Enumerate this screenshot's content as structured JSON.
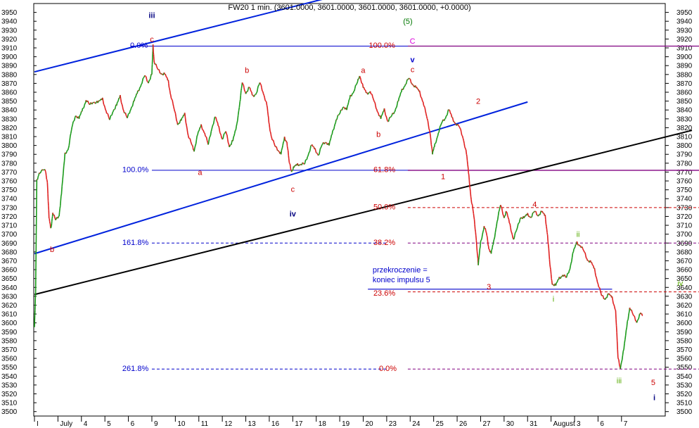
{
  "chart_data": {
    "type": "line",
    "title": "FW20 1 min. (3601.0000, 3601.0000, 3601.0000, 3601.0000, +0.0000)",
    "ylim": [
      3495,
      3960
    ],
    "y_ticks": [
      3500,
      3510,
      3520,
      3530,
      3540,
      3550,
      3560,
      3570,
      3580,
      3590,
      3600,
      3610,
      3620,
      3630,
      3640,
      3650,
      3660,
      3670,
      3680,
      3690,
      3700,
      3710,
      3720,
      3730,
      3740,
      3750,
      3760,
      3770,
      3780,
      3790,
      3800,
      3810,
      3820,
      3830,
      3840,
      3850,
      3860,
      3870,
      3880,
      3890,
      3900,
      3910,
      3920,
      3930,
      3940,
      3950
    ],
    "x_ticks": [
      "I",
      "July",
      "4",
      "5",
      "6",
      "9",
      "10",
      "11",
      "12",
      "13",
      "16",
      "17",
      "18",
      "19",
      "20",
      "23",
      "24",
      "25",
      "26",
      "27",
      "30",
      "31",
      "August",
      "3",
      "6",
      "7"
    ],
    "x_tick_pos": [
      0,
      1,
      2,
      3,
      4,
      5,
      6,
      7,
      8,
      9,
      10,
      11,
      12,
      13,
      14,
      15,
      16,
      17,
      18,
      19,
      20,
      21,
      22,
      23,
      24,
      25
    ],
    "xlim": [
      0,
      28.3
    ],
    "colors": {
      "up": "#1a9a1a",
      "down": "#e02020",
      "fib": "#0000cc",
      "channel": "#0000dd",
      "trend": "#000000",
      "purple": "#800080"
    },
    "series": [
      {
        "values": [
          [
            0,
            3597
          ],
          [
            0.05,
            3635
          ],
          [
            0.1,
            3760
          ],
          [
            0.2,
            3770
          ],
          [
            0.45,
            3772
          ],
          [
            0.55,
            3760
          ],
          [
            0.62,
            3718
          ],
          [
            0.7,
            3705
          ],
          [
            0.78,
            3725
          ],
          [
            0.9,
            3715
          ],
          [
            1.05,
            3722
          ],
          [
            1.15,
            3745
          ],
          [
            1.3,
            3790
          ],
          [
            1.45,
            3798
          ],
          [
            1.6,
            3820
          ],
          [
            1.75,
            3835
          ],
          [
            1.9,
            3830
          ],
          [
            2.05,
            3840
          ],
          [
            2.2,
            3852
          ],
          [
            2.35,
            3845
          ],
          [
            2.5,
            3850
          ],
          [
            2.7,
            3848
          ],
          [
            2.9,
            3852
          ],
          [
            3.05,
            3840
          ],
          [
            3.2,
            3828
          ],
          [
            3.35,
            3840
          ],
          [
            3.5,
            3845
          ],
          [
            3.65,
            3855
          ],
          [
            3.8,
            3840
          ],
          [
            3.95,
            3830
          ],
          [
            4.1,
            3842
          ],
          [
            4.25,
            3850
          ],
          [
            4.4,
            3860
          ],
          [
            4.55,
            3870
          ],
          [
            4.7,
            3878
          ],
          [
            4.85,
            3872
          ],
          [
            5.0,
            3880
          ],
          [
            5.05,
            3912
          ],
          [
            5.1,
            3895
          ],
          [
            5.25,
            3885
          ],
          [
            5.4,
            3882
          ],
          [
            5.55,
            3880
          ],
          [
            5.7,
            3872
          ],
          [
            5.8,
            3858
          ],
          [
            5.95,
            3840
          ],
          [
            6.1,
            3825
          ],
          [
            6.25,
            3828
          ],
          [
            6.4,
            3835
          ],
          [
            6.55,
            3812
          ],
          [
            6.7,
            3800
          ],
          [
            6.8,
            3795
          ],
          [
            6.95,
            3812
          ],
          [
            7.1,
            3822
          ],
          [
            7.25,
            3815
          ],
          [
            7.4,
            3800
          ],
          [
            7.55,
            3820
          ],
          [
            7.7,
            3832
          ],
          [
            7.85,
            3820
          ],
          [
            8.0,
            3808
          ],
          [
            8.15,
            3815
          ],
          [
            8.3,
            3800
          ],
          [
            8.45,
            3805
          ],
          [
            8.6,
            3820
          ],
          [
            8.75,
            3850
          ],
          [
            8.85,
            3870
          ],
          [
            9.0,
            3860
          ],
          [
            9.15,
            3865
          ],
          [
            9.3,
            3855
          ],
          [
            9.45,
            3860
          ],
          [
            9.6,
            3870
          ],
          [
            9.75,
            3860
          ],
          [
            9.9,
            3845
          ],
          [
            10.0,
            3822
          ],
          [
            10.1,
            3810
          ],
          [
            10.25,
            3798
          ],
          [
            10.4,
            3795
          ],
          [
            10.5,
            3790
          ],
          [
            10.65,
            3808
          ],
          [
            10.75,
            3805
          ],
          [
            10.85,
            3780
          ],
          [
            10.95,
            3772
          ],
          [
            11.05,
            3775
          ],
          [
            11.2,
            3778
          ],
          [
            11.35,
            3780
          ],
          [
            11.5,
            3778
          ],
          [
            11.65,
            3790
          ],
          [
            11.8,
            3800
          ],
          [
            11.95,
            3795
          ],
          [
            12.1,
            3790
          ],
          [
            12.25,
            3800
          ],
          [
            12.4,
            3805
          ],
          [
            12.55,
            3800
          ],
          [
            12.7,
            3815
          ],
          [
            12.85,
            3830
          ],
          [
            13.0,
            3835
          ],
          [
            13.15,
            3845
          ],
          [
            13.3,
            3840
          ],
          [
            13.45,
            3855
          ],
          [
            13.6,
            3862
          ],
          [
            13.75,
            3870
          ],
          [
            13.85,
            3880
          ],
          [
            14.0,
            3865
          ],
          [
            14.15,
            3858
          ],
          [
            14.3,
            3862
          ],
          [
            14.45,
            3850
          ],
          [
            14.6,
            3840
          ],
          [
            14.75,
            3830
          ],
          [
            14.9,
            3840
          ],
          [
            15.05,
            3828
          ],
          [
            15.2,
            3832
          ],
          [
            15.35,
            3840
          ],
          [
            15.5,
            3850
          ],
          [
            15.65,
            3862
          ],
          [
            15.8,
            3870
          ],
          [
            15.95,
            3875
          ],
          [
            16.1,
            3870
          ],
          [
            16.25,
            3865
          ],
          [
            16.4,
            3860
          ],
          [
            16.55,
            3850
          ],
          [
            16.7,
            3832
          ],
          [
            16.85,
            3815
          ],
          [
            16.95,
            3790
          ],
          [
            17.05,
            3800
          ],
          [
            17.2,
            3815
          ],
          [
            17.35,
            3825
          ],
          [
            17.5,
            3832
          ],
          [
            17.65,
            3840
          ],
          [
            17.8,
            3830
          ],
          [
            17.95,
            3825
          ],
          [
            18.1,
            3820
          ],
          [
            18.25,
            3810
          ],
          [
            18.4,
            3790
          ],
          [
            18.5,
            3765
          ],
          [
            18.6,
            3740
          ],
          [
            18.7,
            3722
          ],
          [
            18.8,
            3700
          ],
          [
            18.9,
            3665
          ],
          [
            19.0,
            3690
          ],
          [
            19.15,
            3710
          ],
          [
            19.25,
            3700
          ],
          [
            19.35,
            3685
          ],
          [
            19.45,
            3678
          ],
          [
            19.55,
            3690
          ],
          [
            19.7,
            3715
          ],
          [
            19.85,
            3732
          ],
          [
            20.0,
            3720
          ],
          [
            20.1,
            3725
          ],
          [
            20.25,
            3710
          ],
          [
            20.4,
            3695
          ],
          [
            20.55,
            3705
          ],
          [
            20.7,
            3720
          ],
          [
            20.85,
            3718
          ],
          [
            21.0,
            3722
          ],
          [
            21.15,
            3720
          ],
          [
            21.3,
            3725
          ],
          [
            21.45,
            3722
          ],
          [
            21.6,
            3725
          ],
          [
            21.75,
            3720
          ],
          [
            21.85,
            3700
          ],
          [
            21.95,
            3665
          ],
          [
            22.05,
            3645
          ],
          [
            22.2,
            3642
          ],
          [
            22.35,
            3650
          ],
          [
            22.5,
            3655
          ],
          [
            22.65,
            3650
          ],
          [
            22.8,
            3662
          ],
          [
            22.95,
            3680
          ],
          [
            23.1,
            3690
          ],
          [
            23.25,
            3688
          ],
          [
            23.4,
            3680
          ],
          [
            23.55,
            3672
          ],
          [
            23.7,
            3668
          ],
          [
            23.85,
            3660
          ],
          [
            24.0,
            3645
          ],
          [
            24.15,
            3630
          ],
          [
            24.3,
            3628
          ],
          [
            24.45,
            3632
          ],
          [
            24.6,
            3628
          ],
          [
            24.75,
            3615
          ],
          [
            24.85,
            3560
          ],
          [
            24.95,
            3550
          ],
          [
            25.1,
            3570
          ],
          [
            25.25,
            3600
          ],
          [
            25.35,
            3618
          ],
          [
            25.5,
            3608
          ],
          [
            25.65,
            3602
          ],
          [
            25.8,
            3610
          ],
          [
            25.9,
            3608
          ]
        ]
      }
    ],
    "lines": [
      {
        "name": "fib-0-left",
        "x1": 4.1,
        "y1": 3912,
        "x2": 16.0,
        "y2": 3912,
        "style": "fib"
      },
      {
        "name": "fib-100-left",
        "x1": 5.0,
        "y1": 3772,
        "x2": 16.0,
        "y2": 3772,
        "style": "fib"
      },
      {
        "name": "fib-1618-left",
        "x1": 5.0,
        "y1": 3690,
        "x2": 15.0,
        "y2": 3690,
        "style": "fib-dash"
      },
      {
        "name": "fib-2618-left",
        "x1": 5.0,
        "y1": 3548,
        "x2": 15.0,
        "y2": 3548,
        "style": "fib-dash"
      },
      {
        "name": "purple-100-right",
        "x1": 15.9,
        "y1": 3912,
        "x2": 28.3,
        "y2": 3912,
        "style": "purple-solid"
      },
      {
        "name": "purple-618-right",
        "x1": 15.9,
        "y1": 3772,
        "x2": 28.3,
        "y2": 3772,
        "style": "purple-solid"
      },
      {
        "name": "purple-50-right",
        "x1": 15.9,
        "y1": 3730,
        "x2": 28.3,
        "y2": 3730,
        "style": "red-dash"
      },
      {
        "name": "purple-382-right",
        "x1": 15.9,
        "y1": 3690,
        "x2": 28.3,
        "y2": 3690,
        "style": "purple-dash"
      },
      {
        "name": "purple-236-right",
        "x1": 15.9,
        "y1": 3635,
        "x2": 28.3,
        "y2": 3635,
        "style": "red-dash"
      },
      {
        "name": "purple-0-right",
        "x1": 15.9,
        "y1": 3548,
        "x2": 28.3,
        "y2": 3548,
        "style": "purple-dash"
      },
      {
        "name": "exceed-line",
        "x1": 14.2,
        "y1": 3638,
        "x2": 24.6,
        "y2": 3638,
        "style": "channel-thin"
      },
      {
        "name": "channel-upper",
        "x1": 0,
        "y1": 3883,
        "x2": 12.3,
        "y2": 3965,
        "style": "channel"
      },
      {
        "name": "channel-lower",
        "x1": 0,
        "y1": 3678,
        "x2": 21.0,
        "y2": 3849,
        "style": "channel"
      },
      {
        "name": "trend-line",
        "x1": 0,
        "y1": 3632,
        "x2": 28.0,
        "y2": 3817,
        "style": "trend"
      }
    ],
    "labels": [
      {
        "text": "iii",
        "x": 5.0,
        "y": 3947,
        "color": "#000080",
        "size": 12,
        "weight": "bold"
      },
      {
        "text": "c",
        "x": 5.0,
        "y": 3920,
        "color": "#cc0000",
        "size": 11
      },
      {
        "text": "b",
        "x": 0.75,
        "y": 3683,
        "color": "#cc0000",
        "size": 11
      },
      {
        "text": "a",
        "x": 7.05,
        "y": 3770,
        "color": "#cc0000",
        "size": 11
      },
      {
        "text": "b",
        "x": 9.05,
        "y": 3885,
        "color": "#cc0000",
        "size": 11
      },
      {
        "text": "c",
        "x": 11.0,
        "y": 3751,
        "color": "#cc0000",
        "size": 11
      },
      {
        "text": "iv",
        "x": 11.0,
        "y": 3723,
        "color": "#000080",
        "size": 12,
        "weight": "bold"
      },
      {
        "text": "a",
        "x": 14.0,
        "y": 3885,
        "color": "#cc0000",
        "size": 11
      },
      {
        "text": "b",
        "x": 14.65,
        "y": 3813,
        "color": "#cc0000",
        "size": 11
      },
      {
        "text": "c",
        "x": 16.1,
        "y": 3886,
        "color": "#cc0000",
        "size": 11
      },
      {
        "text": "v",
        "x": 16.1,
        "y": 3897,
        "color": "#0000cc",
        "size": 12,
        "weight": "bold"
      },
      {
        "text": "C",
        "x": 16.1,
        "y": 3918,
        "color": "#dd00dd",
        "size": 13
      },
      {
        "text": "(5)",
        "x": 15.9,
        "y": 3940,
        "color": "#007700",
        "size": 12
      },
      {
        "text": "1",
        "x": 17.4,
        "y": 3765,
        "color": "#cc0000",
        "size": 11
      },
      {
        "text": "2",
        "x": 18.9,
        "y": 3850,
        "color": "#cc0000",
        "size": 12
      },
      {
        "text": "3",
        "x": 19.35,
        "y": 3641,
        "color": "#cc0000",
        "size": 12
      },
      {
        "text": "4",
        "x": 21.3,
        "y": 3734,
        "color": "#cc0000",
        "size": 12
      },
      {
        "text": "ii",
        "x": 23.15,
        "y": 3700,
        "color": "#55aa00",
        "size": 11
      },
      {
        "text": "i",
        "x": 22.1,
        "y": 3627,
        "color": "#55aa00",
        "size": 11
      },
      {
        "text": "iii",
        "x": 24.9,
        "y": 3535,
        "color": "#55aa00",
        "size": 11
      },
      {
        "text": "iv",
        "x": 27.5,
        "y": 3645,
        "color": "#55aa00",
        "size": 11
      },
      {
        "text": "5",
        "x": 26.35,
        "y": 3533,
        "color": "#cc0000",
        "size": 12
      },
      {
        "text": "i",
        "x": 26.4,
        "y": 3516,
        "color": "#000080",
        "size": 12,
        "weight": "bold"
      },
      {
        "text": "0.0%",
        "x": 4.45,
        "y": 3913,
        "color": "#0000cc",
        "size": 11
      },
      {
        "text": "100.0%",
        "x": 4.3,
        "y": 3773,
        "color": "#0000cc",
        "size": 11
      },
      {
        "text": "161.8%",
        "x": 4.3,
        "y": 3691,
        "color": "#0000cc",
        "size": 11
      },
      {
        "text": "261.8%",
        "x": 4.3,
        "y": 3549,
        "color": "#0000cc",
        "size": 11
      },
      {
        "text": "100.0%",
        "x": 14.8,
        "y": 3913,
        "color": "#cc0000",
        "size": 11
      },
      {
        "text": "61.8%",
        "x": 14.9,
        "y": 3773,
        "color": "#cc0000",
        "size": 11
      },
      {
        "text": "50.0%",
        "x": 14.9,
        "y": 3731,
        "color": "#cc0000",
        "size": 11
      },
      {
        "text": "38.2%",
        "x": 14.9,
        "y": 3691,
        "color": "#cc0000",
        "size": 11
      },
      {
        "text": "23.6%",
        "x": 14.9,
        "y": 3634,
        "color": "#cc0000",
        "size": 11
      },
      {
        "text": "0.0%",
        "x": 15.05,
        "y": 3549,
        "color": "#cc0000",
        "size": 11
      },
      {
        "text": "przekroczenie =",
        "x": 14.4,
        "y": 3660,
        "color": "#0000cc",
        "size": 11,
        "anchor": "start"
      },
      {
        "text": "koniec impulsu 5",
        "x": 14.4,
        "y": 3649,
        "color": "#0000cc",
        "size": 11,
        "anchor": "start"
      }
    ]
  }
}
